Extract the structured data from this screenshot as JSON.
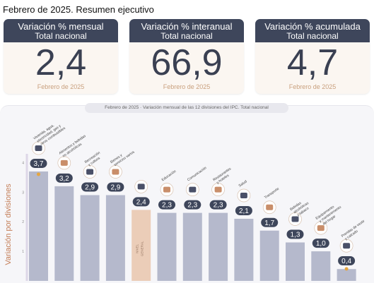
{
  "page_title": "Febrero de 2025. Resumen ejecutivo",
  "kpis": [
    {
      "label": "Variación % mensual",
      "sub": "Total nacional",
      "value": "2,4",
      "date": "Febrero de 2025"
    },
    {
      "label": "Variación % interanual",
      "sub": "Total nacional",
      "value": "66,9",
      "date": "Febrero de 2025"
    },
    {
      "label": "Variación % acumulada",
      "sub": "Total nacional",
      "value": "4,7",
      "date": "Febrero de 2025"
    }
  ],
  "chart_title": "Febrero de 2025 · Variación mensual de las 12 divisiones del IPC. Total nacional",
  "chart_data": {
    "type": "bar",
    "ylabel": "Variación por divisiones",
    "ylim": [
      0,
      4.2
    ],
    "yticks": [
      1,
      2,
      3,
      4
    ],
    "grid": false,
    "categories": [
      "Vivienda, agua, electricidad, gas y otros combustibles",
      "Alimentos y bebidas no alcohólicas",
      "Recreación y cultura",
      "Bienes y servicios varios",
      "NIVEL GENERAL",
      "Educación",
      "Comunicación",
      "Restaurantes y hoteles",
      "Salud",
      "Transporte",
      "Bebidas alcohólicas y tabaco",
      "Equipamiento y mantenimiento del hogar",
      "Prendas de vestir y calzado"
    ],
    "values": [
      3.7,
      3.2,
      2.9,
      2.9,
      2.4,
      2.3,
      2.3,
      2.3,
      2.1,
      1.7,
      1.3,
      1.0,
      0.4
    ],
    "value_labels": [
      "3,7",
      "3,2",
      "2,9",
      "2,9",
      "2,4",
      "2,3",
      "2,3",
      "2,3",
      "2,1",
      "1,7",
      "1,3",
      "1,0",
      "0,4"
    ],
    "category_labels": [
      [
        "Vivienda, agua,",
        "electricidad, gas y",
        "otros combustibles"
      ],
      [
        "Alimentos y bebidas",
        "no alcohólicas"
      ],
      [
        "Recreación",
        "y cultura"
      ],
      [
        "Bienes y",
        "servicios varios"
      ],
      [
        "NIVEL",
        "GENERAL"
      ],
      [
        "Educación"
      ],
      [
        "Comunicación"
      ],
      [
        "Restaurantes",
        "y hoteles"
      ],
      [
        "Salud"
      ],
      [
        "Transporte"
      ],
      [
        "Bebidas",
        "alcohólicas",
        "y tabaco"
      ],
      [
        "Equipamiento",
        "y mantenimiento",
        "del hogar"
      ],
      [
        "Prendas de vestir",
        "y calzado"
      ]
    ],
    "highlight_category": "NIVEL GENERAL",
    "colors": {
      "bar": "#b5b9cc",
      "highlight": "#ebcdb8",
      "badge": "#3e465b",
      "marker": "#e6a640",
      "axis": "#ddd7e8",
      "ylabel": "#c47e58"
    },
    "icons": [
      "house-icon",
      "shopping-basket-icon",
      "theater-masks-icon",
      "bag-icon",
      "money-bag-icon",
      "graduation-cap-icon",
      "telephone-icon",
      "cutlery-icon",
      "medical-cross-icon",
      "bus-icon",
      "wine-glass-icon",
      "sofa-icon",
      "shirt-icon"
    ]
  }
}
